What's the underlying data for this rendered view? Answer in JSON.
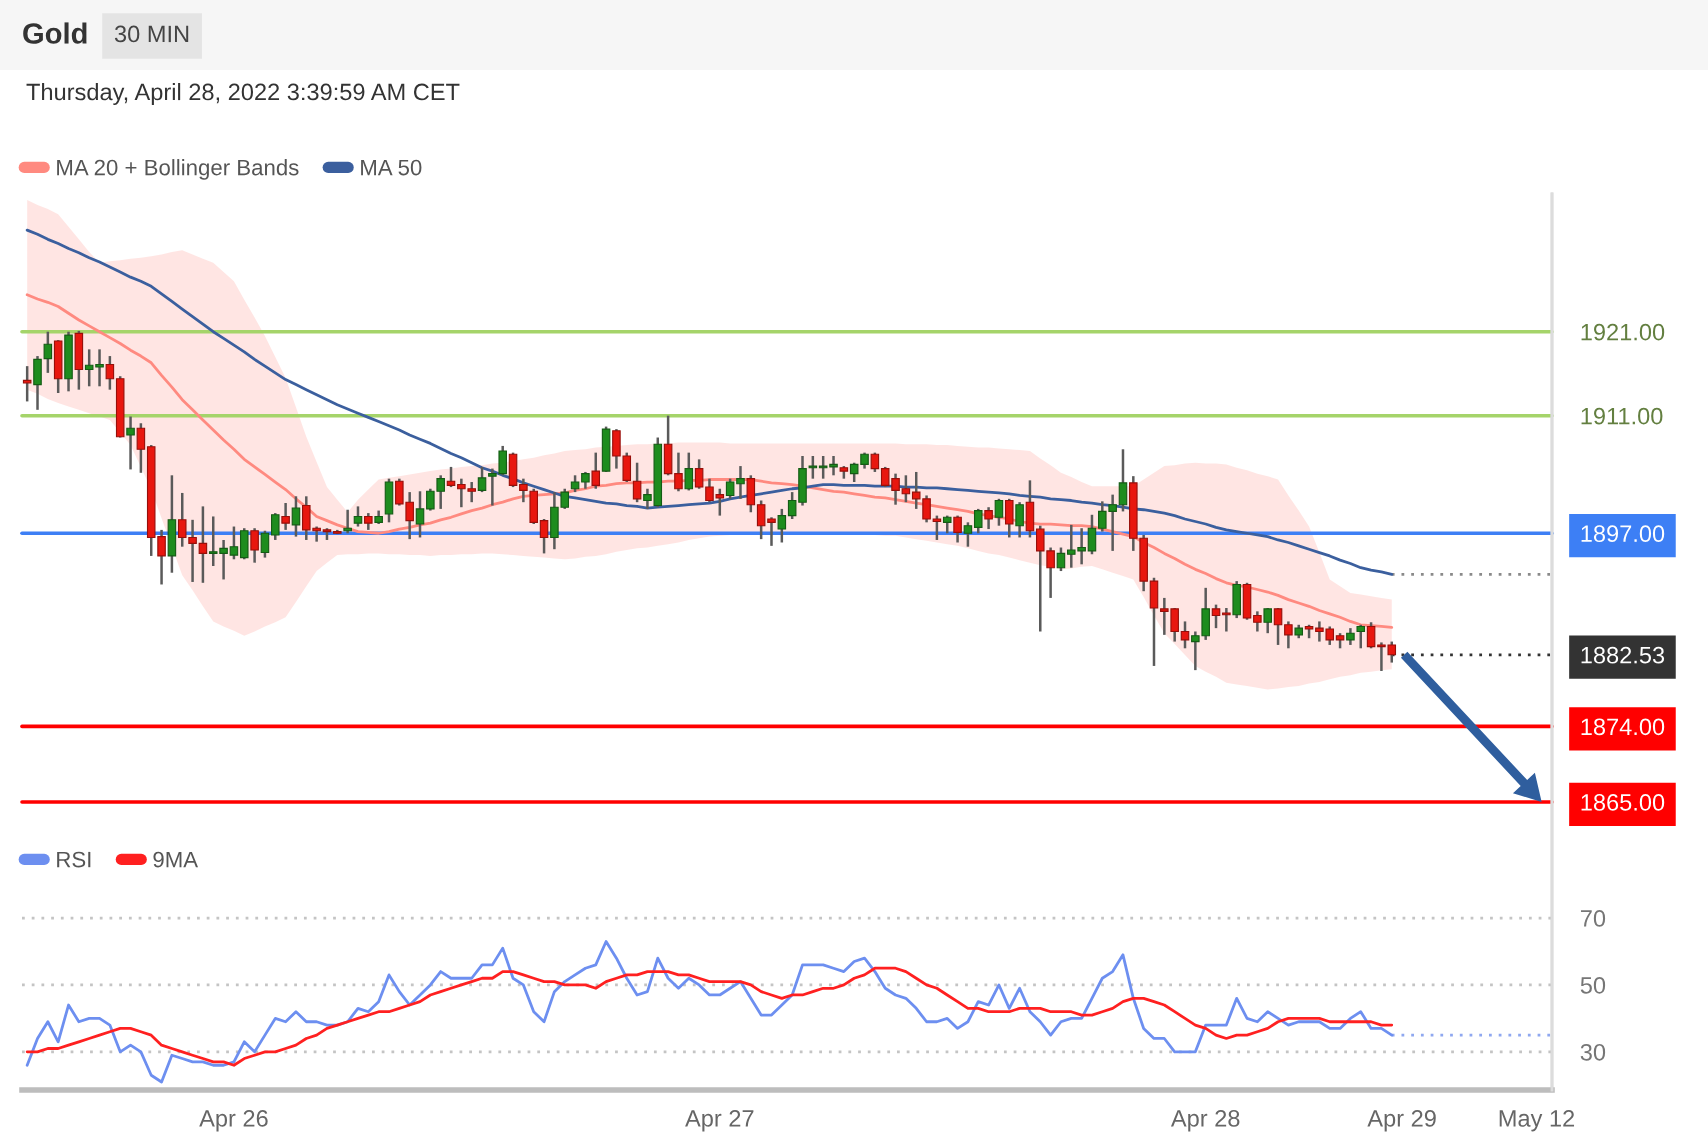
{
  "chart_data": {
    "type": "candlestick",
    "title": "Gold",
    "subtitle": "30 MIN",
    "annotations": [
      "Thursday, April 28, 2022 3:39:59 AM CET"
    ],
    "categories": [
      null,
      null,
      null,
      null,
      null,
      null,
      null,
      null,
      null,
      null,
      null,
      null,
      null,
      null,
      null,
      null,
      null,
      null,
      null,
      null,
      "Apr 26",
      null,
      null,
      null,
      null,
      null,
      null,
      null,
      null,
      null,
      null,
      null,
      null,
      null,
      null,
      null,
      null,
      null,
      null,
      null,
      null,
      null,
      null,
      null,
      null,
      null,
      null,
      null,
      null,
      null,
      null,
      null,
      null,
      null,
      null,
      null,
      null,
      null,
      null,
      null,
      null,
      null,
      null,
      null,
      null,
      null,
      null,
      "Apr 27",
      null,
      null,
      null,
      null,
      null,
      null,
      null,
      null,
      null,
      null,
      null,
      null,
      null,
      null,
      null,
      null,
      null,
      null,
      null,
      null,
      null,
      null,
      null,
      null,
      null,
      null,
      null,
      null,
      null,
      null,
      null,
      null,
      null,
      null,
      null,
      null,
      null,
      null,
      null,
      null,
      null,
      null,
      null,
      null,
      null,
      null,
      "Apr 28",
      null,
      null,
      null,
      null,
      null,
      null,
      null,
      null,
      null,
      null,
      null,
      null,
      null,
      null,
      null,
      null,
      null,
      null,
      "Apr 29",
      null,
      null,
      null,
      null,
      null,
      null,
      null,
      null,
      null,
      null,
      null,
      null,
      "May 12",
      null
    ],
    "ohlc": [
      [
        1915.2,
        1916.9,
        1912.7,
        1914.9
      ],
      [
        1914.7,
        1918.1,
        1911.7,
        1917.7
      ],
      [
        1917.8,
        1921.0,
        1916.1,
        1919.5
      ],
      [
        1919.9,
        1920.0,
        1913.7,
        1915.4
      ],
      [
        1915.4,
        1921.0,
        1913.9,
        1920.6
      ],
      [
        1920.8,
        1921.1,
        1914.1,
        1916.5
      ],
      [
        1916.5,
        1918.9,
        1914.5,
        1917.0
      ],
      [
        1916.8,
        1918.9,
        1914.5,
        1917.1
      ],
      [
        1917.1,
        1918.1,
        1914.1,
        1915.4
      ],
      [
        1915.4,
        1915.7,
        1908.4,
        1908.5
      ],
      [
        1908.7,
        1910.9,
        1904.6,
        1909.5
      ],
      [
        1909.5,
        1910.1,
        1904.2,
        1907.0
      ],
      [
        1907.3,
        1907.5,
        1894.3,
        1896.5
      ],
      [
        1896.6,
        1897.4,
        1890.9,
        1894.3
      ],
      [
        1894.3,
        1903.9,
        1892.3,
        1898.6
      ],
      [
        1898.6,
        1901.8,
        1895.4,
        1896.5
      ],
      [
        1896.5,
        1898.6,
        1891.2,
        1895.8
      ],
      [
        1895.8,
        1900.2,
        1891.1,
        1894.6
      ],
      [
        1894.6,
        1899.0,
        1893.1,
        1894.8
      ],
      [
        1894.6,
        1896.2,
        1891.5,
        1895.2
      ],
      [
        1894.4,
        1897.8,
        1893.9,
        1895.4
      ],
      [
        1894.1,
        1897.6,
        1893.9,
        1897.3
      ],
      [
        1897.3,
        1897.6,
        1893.5,
        1895.0
      ],
      [
        1894.7,
        1897.3,
        1894.1,
        1897.0
      ],
      [
        1896.8,
        1899.4,
        1896.2,
        1899.2
      ],
      [
        1899.0,
        1900.6,
        1897.4,
        1898.2
      ],
      [
        1898.0,
        1901.4,
        1896.6,
        1900.0
      ],
      [
        1900.3,
        1901.4,
        1896.2,
        1897.4
      ],
      [
        1897.6,
        1897.8,
        1896.0,
        1897.3
      ],
      [
        1897.4,
        1897.6,
        1896.2,
        1897.2
      ],
      [
        1897.2,
        1897.4,
        1896.9,
        1897.0
      ],
      [
        1897.3,
        1899.8,
        1897.0,
        1897.6
      ],
      [
        1898.2,
        1900.2,
        1897.8,
        1899.0
      ],
      [
        1899.0,
        1899.4,
        1897.4,
        1898.2
      ],
      [
        1898.3,
        1899.7,
        1898.1,
        1899.0
      ],
      [
        1899.3,
        1903.5,
        1898.3,
        1903.1
      ],
      [
        1903.2,
        1903.5,
        1900.3,
        1900.5
      ],
      [
        1900.7,
        1901.9,
        1896.3,
        1898.5
      ],
      [
        1898.1,
        1902.0,
        1896.5,
        1899.9
      ],
      [
        1899.9,
        1902.3,
        1899.7,
        1902.0
      ],
      [
        1902.0,
        1903.9,
        1899.9,
        1903.5
      ],
      [
        1903.2,
        1904.9,
        1902.5,
        1902.7
      ],
      [
        1902.8,
        1903.5,
        1900.1,
        1902.3
      ],
      [
        1902.3,
        1903.1,
        1900.7,
        1902.0
      ],
      [
        1902.1,
        1904.9,
        1901.9,
        1903.6
      ],
      [
        1903.8,
        1904.7,
        1900.3,
        1904.1
      ],
      [
        1904.1,
        1907.4,
        1903.9,
        1906.8
      ],
      [
        1906.4,
        1906.6,
        1902.5,
        1902.7
      ],
      [
        1902.8,
        1903.5,
        1900.7,
        1902.1
      ],
      [
        1902.0,
        1902.3,
        1898.1,
        1898.3
      ],
      [
        1898.5,
        1898.7,
        1894.6,
        1896.5
      ],
      [
        1896.5,
        1901.9,
        1895.1,
        1900.1
      ],
      [
        1900.1,
        1902.3,
        1899.9,
        1901.9
      ],
      [
        1902.3,
        1903.9,
        1901.9,
        1903.1
      ],
      [
        1903.1,
        1904.3,
        1902.3,
        1904.1
      ],
      [
        1904.4,
        1906.6,
        1902.3,
        1902.7
      ],
      [
        1904.4,
        1909.7,
        1904.3,
        1909.4
      ],
      [
        1909.2,
        1909.4,
        1904.7,
        1906.2
      ],
      [
        1906.2,
        1906.6,
        1903.1,
        1903.3
      ],
      [
        1903.2,
        1905.4,
        1900.7,
        1901.1
      ],
      [
        1900.9,
        1902.3,
        1899.9,
        1901.6
      ],
      [
        1900.3,
        1908.4,
        1900.1,
        1907.6
      ],
      [
        1907.6,
        1911.0,
        1903.9,
        1904.1
      ],
      [
        1904.1,
        1906.6,
        1902.0,
        1902.3
      ],
      [
        1902.3,
        1906.6,
        1902.1,
        1904.7
      ],
      [
        1904.7,
        1905.8,
        1902.3,
        1902.5
      ],
      [
        1902.5,
        1903.5,
        1900.7,
        1900.9
      ],
      [
        1901.6,
        1902.3,
        1899.1,
        1901.2
      ],
      [
        1901.5,
        1903.5,
        1901.1,
        1903.1
      ],
      [
        1902.9,
        1905.0,
        1901.1,
        1903.5
      ],
      [
        1903.5,
        1903.9,
        1899.5,
        1900.4
      ],
      [
        1900.4,
        1900.9,
        1896.3,
        1897.9
      ],
      [
        1898.7,
        1898.9,
        1895.5,
        1898.3
      ],
      [
        1897.5,
        1899.9,
        1895.9,
        1899.1
      ],
      [
        1899.1,
        1901.9,
        1898.7,
        1900.9
      ],
      [
        1900.7,
        1906.2,
        1900.3,
        1904.7
      ],
      [
        1904.8,
        1906.2,
        1903.5,
        1905.0
      ],
      [
        1904.8,
        1906.2,
        1903.5,
        1905.0
      ],
      [
        1904.9,
        1906.2,
        1903.9,
        1905.2
      ],
      [
        1904.8,
        1905.0,
        1903.5,
        1904.4
      ],
      [
        1904.1,
        1905.4,
        1903.1,
        1905.2
      ],
      [
        1905.2,
        1906.6,
        1904.7,
        1906.4
      ],
      [
        1906.4,
        1906.6,
        1904.3,
        1904.7
      ],
      [
        1904.7,
        1904.9,
        1902.5,
        1902.7
      ],
      [
        1903.5,
        1904.1,
        1900.4,
        1902.1
      ],
      [
        1902.3,
        1903.9,
        1900.7,
        1901.7
      ],
      [
        1901.9,
        1904.3,
        1899.9,
        1901.1
      ],
      [
        1901.1,
        1901.5,
        1898.3,
        1898.7
      ],
      [
        1898.7,
        1899.1,
        1896.2,
        1898.4
      ],
      [
        1898.3,
        1899.1,
        1897.0,
        1898.9
      ],
      [
        1898.9,
        1899.1,
        1895.9,
        1897.1
      ],
      [
        1897.0,
        1898.3,
        1895.4,
        1897.9
      ],
      [
        1897.7,
        1899.9,
        1897.0,
        1899.7
      ],
      [
        1899.7,
        1900.1,
        1897.5,
        1898.7
      ],
      [
        1898.9,
        1901.1,
        1897.9,
        1900.9
      ],
      [
        1900.9,
        1901.1,
        1896.5,
        1898.1
      ],
      [
        1897.9,
        1900.7,
        1896.5,
        1900.4
      ],
      [
        1900.7,
        1903.3,
        1896.5,
        1897.3
      ],
      [
        1897.5,
        1897.9,
        1885.3,
        1894.9
      ],
      [
        1894.9,
        1895.3,
        1889.3,
        1892.9
      ],
      [
        1892.9,
        1895.3,
        1892.5,
        1894.6
      ],
      [
        1894.5,
        1898.0,
        1892.9,
        1895.0
      ],
      [
        1894.9,
        1897.6,
        1893.3,
        1895.3
      ],
      [
        1894.9,
        1899.2,
        1894.5,
        1897.6
      ],
      [
        1897.6,
        1900.8,
        1897.2,
        1899.6
      ],
      [
        1899.6,
        1901.6,
        1894.9,
        1900.4
      ],
      [
        1900.4,
        1907.0,
        1899.6,
        1903.0
      ],
      [
        1903.0,
        1903.8,
        1894.9,
        1896.4
      ],
      [
        1896.4,
        1896.8,
        1890.1,
        1891.3
      ],
      [
        1891.3,
        1891.7,
        1881.2,
        1888.1
      ],
      [
        1888.0,
        1889.3,
        1884.9,
        1887.7
      ],
      [
        1888.0,
        1888.1,
        1884.1,
        1885.3
      ],
      [
        1885.3,
        1886.5,
        1883.3,
        1884.3
      ],
      [
        1884.1,
        1885.3,
        1880.7,
        1884.8
      ],
      [
        1884.8,
        1890.5,
        1884.3,
        1888.0
      ],
      [
        1888.0,
        1888.5,
        1885.7,
        1887.2
      ],
      [
        1887.5,
        1888.1,
        1885.3,
        1887.3
      ],
      [
        1887.3,
        1891.3,
        1886.9,
        1890.9
      ],
      [
        1890.9,
        1891.1,
        1886.7,
        1886.9
      ],
      [
        1887.2,
        1887.7,
        1885.3,
        1886.4
      ],
      [
        1886.4,
        1888.1,
        1885.1,
        1888.0
      ],
      [
        1888.0,
        1888.1,
        1883.7,
        1886.1
      ],
      [
        1886.1,
        1886.5,
        1883.3,
        1884.9
      ],
      [
        1884.9,
        1886.1,
        1884.5,
        1885.7
      ],
      [
        1885.9,
        1886.1,
        1884.5,
        1885.6
      ],
      [
        1885.7,
        1886.5,
        1884.1,
        1885.3
      ],
      [
        1885.6,
        1885.9,
        1883.7,
        1884.3
      ],
      [
        1884.8,
        1885.1,
        1883.3,
        1884.3
      ],
      [
        1884.3,
        1885.7,
        1883.7,
        1885.1
      ],
      [
        1885.3,
        1886.1,
        1883.3,
        1885.9
      ],
      [
        1885.9,
        1886.4,
        1883.3,
        1883.5
      ],
      [
        1883.7,
        1884.0,
        1880.6,
        1883.5
      ],
      [
        1883.7,
        1884.1,
        1881.6,
        1882.53
      ],
      null,
      null,
      null,
      null,
      null,
      null,
      null,
      null,
      null,
      null,
      null,
      null,
      null,
      null,
      null
    ],
    "colors": [
      "#e8170f",
      "#1e8c1e",
      "#1e8c1e",
      "#e8170f",
      "#1e8c1e",
      "#e8170f",
      "#1e8c1e",
      "#1e8c1e",
      "#e8170f",
      "#e8170f",
      "#1e8c1e",
      "#e8170f",
      "#e8170f",
      "#e8170f",
      "#1e8c1e",
      "#e8170f",
      "#e8170f",
      "#e8170f",
      "#1e8c1e",
      "#1e8c1e",
      "#1e8c1e",
      "#1e8c1e",
      "#e8170f",
      "#1e8c1e",
      "#1e8c1e",
      "#e8170f",
      "#1e8c1e",
      "#e8170f",
      "#e8170f",
      "#e8170f",
      "#e8170f",
      "#1e8c1e",
      "#1e8c1e",
      "#e8170f",
      "#1e8c1e",
      "#1e8c1e",
      "#e8170f",
      "#e8170f",
      "#1e8c1e",
      "#1e8c1e",
      "#1e8c1e",
      "#e8170f",
      "#e8170f",
      "#e8170f",
      "#1e8c1e",
      "#1e8c1e",
      "#1e8c1e",
      "#e8170f",
      "#e8170f",
      "#e8170f",
      "#e8170f",
      "#1e8c1e",
      "#1e8c1e",
      "#1e8c1e",
      "#1e8c1e",
      "#e8170f",
      "#1e8c1e",
      "#e8170f",
      "#e8170f",
      "#e8170f",
      "#1e8c1e",
      "#1e8c1e",
      "#e8170f",
      "#e8170f",
      "#1e8c1e",
      "#e8170f",
      "#e8170f",
      "#e8170f",
      "#1e8c1e",
      "#1e8c1e",
      "#e8170f",
      "#e8170f",
      "#e8170f",
      "#1e8c1e",
      "#1e8c1e",
      "#1e8c1e",
      "#1e8c1e",
      "#1e8c1e",
      "#1e8c1e",
      "#e8170f",
      "#1e8c1e",
      "#1e8c1e",
      "#e8170f",
      "#e8170f",
      "#e8170f",
      "#e8170f",
      "#e8170f",
      "#e8170f",
      "#e8170f",
      "#1e8c1e",
      "#e8170f",
      "#1e8c1e",
      "#1e8c1e",
      "#e8170f",
      "#1e8c1e",
      "#e8170f",
      "#1e8c1e",
      "#e8170f",
      "#e8170f",
      "#e8170f",
      "#1e8c1e",
      "#1e8c1e",
      "#1e8c1e",
      "#1e8c1e",
      "#1e8c1e",
      "#1e8c1e",
      "#1e8c1e",
      "#e8170f",
      "#e8170f",
      "#e8170f",
      "#e8170f",
      "#e8170f",
      "#e8170f",
      "#1e8c1e",
      "#1e8c1e",
      "#e8170f",
      "#e8170f",
      "#1e8c1e",
      "#e8170f",
      "#e8170f",
      "#1e8c1e",
      "#e8170f",
      "#e8170f",
      "#1e8c1e",
      "#e8170f",
      "#e8170f",
      "#e8170f",
      "#e8170f",
      "#1e8c1e",
      "#1e8c1e",
      "#e8170f",
      "#e8170f",
      "#e8170f",
      null,
      null,
      null,
      null,
      null,
      null,
      null,
      null,
      null,
      null,
      null,
      null,
      null,
      null,
      null
    ],
    "series": [
      {
        "name": "MA 20 + Bollinger Bands",
        "type": "line",
        "color": "#ff8a80",
        "values": [
          1925.4,
          1924.9,
          1924.5,
          1924.0,
          1923.2,
          1922.4,
          1921.7,
          1921.0,
          1920.3,
          1919.6,
          1918.8,
          1918.1,
          1917.3,
          1915.8,
          1914.4,
          1912.9,
          1911.7,
          1910.5,
          1909.3,
          1908.1,
          1907.0,
          1905.8,
          1904.9,
          1904.0,
          1903.1,
          1902.2,
          1901.1,
          1900.1,
          1899.0,
          1898.5,
          1898.0,
          1897.6,
          1897.2,
          1897.1,
          1897.0,
          1897.2,
          1897.5,
          1897.7,
          1898.0,
          1898.2,
          1898.6,
          1898.9,
          1899.3,
          1899.7,
          1900.0,
          1900.4,
          1900.7,
          1901.1,
          1901.4,
          1901.5,
          1901.6,
          1901.7,
          1901.8,
          1902.1,
          1902.3,
          1902.6,
          1902.7,
          1902.9,
          1903.0,
          1903.0,
          1903.1,
          1903.1,
          1903.2,
          1903.2,
          1903.3,
          1903.3,
          1903.4,
          1903.4,
          1903.4,
          1903.4,
          1903.4,
          1903.2,
          1903.0,
          1902.9,
          1902.8,
          1902.6,
          1902.4,
          1902.2,
          1902.0,
          1901.9,
          1901.7,
          1901.5,
          1901.3,
          1901.2,
          1901.0,
          1900.8,
          1900.6,
          1900.4,
          1900.2,
          1900.0,
          1899.8,
          1899.6,
          1899.3,
          1899.1,
          1898.9,
          1898.7,
          1898.4,
          1898.2,
          1898.1,
          1898.1,
          1898.0,
          1897.9,
          1897.9,
          1897.8,
          1897.5,
          1897.2,
          1896.9,
          1896.6,
          1895.9,
          1895.3,
          1894.6,
          1894.0,
          1893.3,
          1892.7,
          1892.2,
          1891.6,
          1891.1,
          1890.8,
          1890.6,
          1890.3,
          1890.0,
          1889.6,
          1889.1,
          1888.7,
          1888.3,
          1887.8,
          1887.4,
          1887.0,
          1886.5,
          1886.1,
          1886.0,
          1885.9,
          1885.8,
          null,
          null,
          null,
          null,
          null,
          null,
          null,
          null,
          null,
          null,
          null,
          null,
          null,
          null,
          null
        ],
        "upper": [
          1936.7,
          1936.1,
          1935.6,
          1935.0,
          1933.5,
          1932.0,
          1930.5,
          1929.2,
          1929.4,
          1929.5,
          1929.7,
          1929.8,
          1930.0,
          1930.2,
          1930.5,
          1930.7,
          1930.2,
          1929.7,
          1929.2,
          1928.1,
          1927.0,
          1924.8,
          1922.7,
          1920.5,
          1918.0,
          1915.5,
          1912.0,
          1908.5,
          1905.5,
          1902.5,
          1901.0,
          1899.5,
          1901.0,
          1902.2,
          1903.4,
          1903.6,
          1903.8,
          1904.0,
          1904.2,
          1904.4,
          1904.6,
          1904.7,
          1904.9,
          1905.0,
          1905.1,
          1905.3,
          1905.4,
          1905.6,
          1905.8,
          1906.0,
          1906.3,
          1906.5,
          1906.8,
          1906.9,
          1907.0,
          1907.2,
          1907.3,
          1907.4,
          1907.5,
          1907.6,
          1907.6,
          1907.7,
          1907.7,
          1907.8,
          1907.8,
          1907.8,
          1907.8,
          1907.8,
          1907.7,
          1907.7,
          1907.7,
          1907.7,
          1907.7,
          1907.7,
          1907.7,
          1907.7,
          1907.7,
          1907.7,
          1907.7,
          1907.7,
          1907.7,
          1907.7,
          1907.7,
          1907.7,
          1907.7,
          1907.6,
          1907.6,
          1907.6,
          1907.5,
          1907.5,
          1907.4,
          1907.3,
          1907.2,
          1907.2,
          1907.1,
          1907.0,
          1906.9,
          1906.8,
          1905.9,
          1905.1,
          1904.2,
          1903.7,
          1903.1,
          1902.6,
          1902.6,
          1902.6,
          1902.6,
          1902.6,
          1903.4,
          1904.2,
          1905.0,
          1905.1,
          1905.3,
          1905.4,
          1905.3,
          1905.3,
          1905.2,
          1904.8,
          1904.5,
          1904.1,
          1903.8,
          1903.4,
          1901.5,
          1899.7,
          1897.8,
          1894.7,
          1891.5,
          1890.7,
          1889.9,
          1889.7,
          1889.5,
          1889.3,
          1889.1,
          null,
          null,
          null,
          null,
          null,
          null,
          null,
          null,
          null,
          null,
          null,
          null,
          null,
          null,
          null
        ],
        "lower": [
          1914.1,
          1913.6,
          1913.0,
          1912.5,
          1912.1,
          1911.7,
          1911.3,
          1910.9,
          1910.5,
          1909.0,
          1907.5,
          1904.9,
          1902.2,
          1898.8,
          1895.4,
          1892.0,
          1890.2,
          1888.3,
          1886.5,
          1885.9,
          1885.4,
          1884.8,
          1885.3,
          1885.9,
          1886.4,
          1887.0,
          1888.8,
          1890.7,
          1892.5,
          1893.5,
          1894.4,
          1894.5,
          1894.5,
          1894.6,
          1894.6,
          1894.5,
          1894.5,
          1894.4,
          1894.4,
          1894.3,
          1894.4,
          1894.4,
          1894.5,
          1894.5,
          1894.6,
          1894.6,
          1894.5,
          1894.4,
          1894.3,
          1894.2,
          1894.1,
          1894.0,
          1893.9,
          1894.0,
          1894.2,
          1894.3,
          1894.5,
          1894.8,
          1895.0,
          1895.2,
          1895.3,
          1895.5,
          1895.7,
          1895.9,
          1896.2,
          1896.4,
          1896.6,
          1896.7,
          1896.8,
          1896.8,
          1896.9,
          1897.0,
          1897.0,
          1897.0,
          1897.0,
          1897.0,
          1897.0,
          1897.0,
          1897.0,
          1896.9,
          1896.9,
          1896.8,
          1896.8,
          1896.7,
          1896.7,
          1896.5,
          1896.3,
          1896.1,
          1895.9,
          1895.7,
          1895.5,
          1895.2,
          1894.9,
          1894.6,
          1894.4,
          1894.1,
          1893.8,
          1893.5,
          1893.2,
          1893.0,
          1892.7,
          1892.8,
          1893.0,
          1893.1,
          1892.7,
          1892.3,
          1891.9,
          1891.5,
          1889.4,
          1887.2,
          1885.1,
          1883.8,
          1882.5,
          1881.2,
          1880.5,
          1879.9,
          1879.2,
          1879.0,
          1878.8,
          1878.6,
          1878.4,
          1878.5,
          1878.7,
          1878.8,
          1879.1,
          1879.3,
          1879.6,
          1879.9,
          1880.1,
          1880.4,
          1880.5,
          1880.7,
          1880.8,
          null,
          null,
          null,
          null,
          null,
          null,
          null,
          null,
          null,
          null,
          null,
          null,
          null,
          null,
          null
        ]
      },
      {
        "name": "MA 50",
        "type": "line",
        "color": "#3b5f9e",
        "values": [
          1933.1,
          1932.6,
          1932.0,
          1931.5,
          1930.9,
          1930.4,
          1929.8,
          1929.3,
          1928.7,
          1928.1,
          1927.5,
          1927.0,
          1926.4,
          1925.5,
          1924.6,
          1923.7,
          1922.8,
          1921.9,
          1921.0,
          1920.2,
          1919.4,
          1918.6,
          1917.7,
          1916.9,
          1916.1,
          1915.3,
          1914.7,
          1914.1,
          1913.5,
          1912.9,
          1912.3,
          1911.8,
          1911.3,
          1910.8,
          1910.3,
          1909.8,
          1909.3,
          1908.7,
          1908.2,
          1907.7,
          1907.1,
          1906.5,
          1906.0,
          1905.4,
          1904.8,
          1904.4,
          1903.9,
          1903.5,
          1903.0,
          1902.6,
          1902.2,
          1901.8,
          1901.4,
          1901.2,
          1901.0,
          1900.8,
          1900.6,
          1900.5,
          1900.3,
          1900.2,
          1900.0,
          1900.1,
          1900.2,
          1900.3,
          1900.4,
          1900.5,
          1900.6,
          1900.8,
          1901.1,
          1901.3,
          1901.5,
          1901.7,
          1901.9,
          1902.1,
          1902.3,
          1902.4,
          1902.6,
          1902.8,
          1902.8,
          1902.7,
          1902.7,
          1902.7,
          1902.6,
          1902.6,
          1902.6,
          1902.5,
          1902.5,
          1902.4,
          1902.4,
          1902.3,
          1902.2,
          1902.1,
          1902.0,
          1901.9,
          1901.8,
          1901.7,
          1901.5,
          1901.4,
          1901.3,
          1901.1,
          1901.0,
          1900.9,
          1900.7,
          1900.6,
          1900.4,
          1900.3,
          1900.1,
          1899.9,
          1899.8,
          1899.6,
          1899.4,
          1899.1,
          1898.7,
          1898.4,
          1898.1,
          1897.7,
          1897.4,
          1897.2,
          1897.0,
          1896.8,
          1896.6,
          1896.2,
          1895.9,
          1895.5,
          1895.1,
          1894.7,
          1894.3,
          1893.8,
          1893.4,
          1892.9,
          1892.6,
          1892.4,
          1892.1,
          null,
          null,
          null,
          null,
          null,
          null,
          null,
          null,
          null,
          null,
          null,
          null,
          null,
          null,
          null
        ]
      },
      {
        "name": "RSI",
        "type": "line",
        "axis": "y2",
        "color": "#6d8ff0",
        "values": [
          26,
          34,
          39,
          33,
          44,
          39,
          40,
          40,
          38,
          30,
          32,
          30,
          23,
          21,
          29,
          28,
          27,
          27,
          26,
          26,
          27,
          33,
          30,
          35,
          40,
          39,
          42,
          39,
          39,
          38,
          38,
          39,
          43,
          42,
          45,
          53,
          48,
          44,
          47,
          50,
          54,
          52,
          52,
          52,
          56,
          56,
          61,
          52,
          50,
          42,
          39,
          48,
          51,
          53,
          55,
          56,
          63,
          58,
          52,
          47,
          48,
          58,
          52,
          49,
          52,
          50,
          47,
          47,
          49,
          51,
          46,
          41,
          41,
          44,
          47,
          56,
          56,
          56,
          55,
          54,
          57,
          58,
          54,
          49,
          47,
          46,
          43,
          39,
          39,
          40,
          37,
          39,
          45,
          44,
          50,
          43,
          49,
          42,
          39,
          35,
          39,
          40,
          40,
          46,
          52,
          54,
          59,
          46,
          37,
          34,
          34,
          30,
          30,
          30,
          38,
          38,
          38,
          46,
          40,
          39,
          42,
          40,
          38,
          39,
          39,
          39,
          37,
          37,
          40,
          42,
          37,
          37,
          35,
          null,
          null,
          null,
          null,
          null,
          null,
          null,
          null,
          null,
          null,
          null,
          null,
          null,
          null,
          null
        ]
      },
      {
        "name": "9MA",
        "type": "line",
        "axis": "y2",
        "color": "#ff2020",
        "values": [
          30,
          30,
          31,
          31,
          32,
          33,
          34,
          35,
          36,
          37,
          37,
          36,
          35,
          32,
          31,
          30,
          29,
          28,
          27,
          27,
          26,
          28,
          29,
          30,
          30,
          31,
          32,
          34,
          35,
          37,
          38,
          39,
          40,
          41,
          42,
          42,
          43,
          44,
          45,
          47,
          48,
          49,
          50,
          51,
          52,
          52,
          54,
          54,
          53,
          52,
          51,
          51,
          50,
          50,
          50,
          49,
          51,
          52,
          53,
          53,
          54,
          54,
          54,
          53,
          53,
          52,
          51,
          51,
          51,
          51,
          50,
          48,
          47,
          46,
          47,
          47,
          48,
          49,
          49,
          50,
          52,
          53,
          55,
          55,
          55,
          54,
          52,
          50,
          49,
          47,
          45,
          43,
          43,
          42,
          42,
          42,
          43,
          43,
          43,
          42,
          42,
          42,
          41,
          41,
          42,
          43,
          45,
          46,
          46,
          45,
          44,
          42,
          40,
          38,
          37,
          35,
          34,
          35,
          35,
          36,
          37,
          39,
          40,
          40,
          40,
          40,
          39,
          39,
          39,
          39,
          39,
          38,
          38,
          null,
          null,
          null,
          null,
          null,
          null,
          null,
          null,
          null,
          null,
          null,
          null,
          null,
          null,
          null
        ]
      }
    ],
    "ylim": [
      1830.7,
      1937.4
    ],
    "yticks": [
      {
        "value": 1921,
        "label": "1921.00"
      },
      {
        "value": 1911,
        "label": "1911.00"
      },
      {
        "value": 1897,
        "label": "1897.00"
      },
      {
        "value": 1882.53,
        "label": "1882.53"
      },
      {
        "value": 1874,
        "label": "1874.00"
      },
      {
        "value": 1865,
        "label": "1865.00"
      }
    ],
    "y2lim": [
      18.6,
      286.4
    ],
    "y2ticks": [
      30,
      50,
      70
    ],
    "ref_lines": [
      {
        "axis": "y",
        "value": 1921,
        "color": "#a5d46a"
      },
      {
        "axis": "y",
        "value": 1911,
        "color": "#a5d46a"
      },
      {
        "axis": "y",
        "value": 1897,
        "color": "#3d7ff5"
      },
      {
        "axis": "y",
        "value": 1892.1,
        "line_style": "dotted",
        "color": "#8a8a8a"
      },
      {
        "axis": "y",
        "value": 1882.53,
        "line_style": "dotted",
        "color": "#333333"
      },
      {
        "axis": "y",
        "value": 1874,
        "color": "#ff0000"
      },
      {
        "axis": "y",
        "value": 1865,
        "color": "#ff0000"
      },
      {
        "axis": "y2",
        "value": 70,
        "line_style": "dotted",
        "color": "#c4c4c4"
      },
      {
        "axis": "y2",
        "value": 50,
        "line_style": "dotted",
        "color": "#c4c4c4"
      },
      {
        "axis": "y2",
        "value": 30,
        "line_style": "dotted",
        "color": "#c4c4c4"
      },
      {
        "axis": "y2",
        "value": 35,
        "line_style": "dotted",
        "color": "#8fa8f0"
      }
    ],
    "legend": "top left"
  }
}
